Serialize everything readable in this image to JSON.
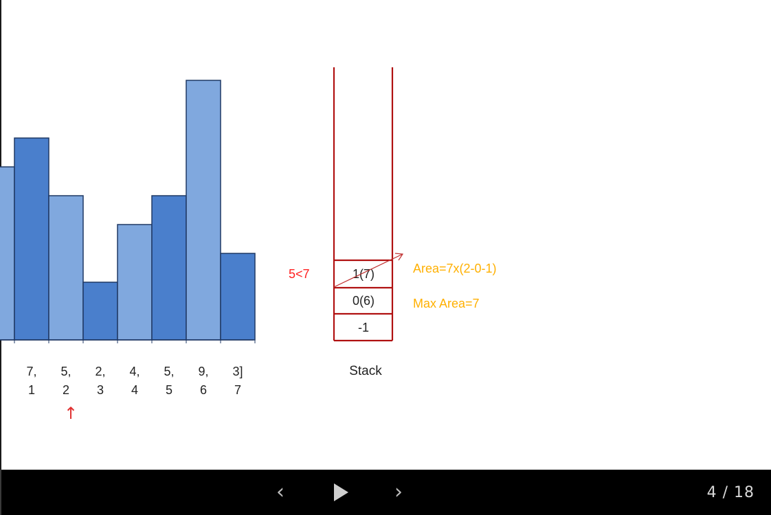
{
  "chart_data": {
    "type": "bar",
    "title": "",
    "xlabel": "",
    "ylabel": "",
    "values": [
      6,
      7,
      5,
      2,
      4,
      5,
      9,
      3
    ],
    "value_labels": [
      "",
      "7,",
      "5,",
      "2,",
      "4,",
      "5,",
      "9,",
      "3]"
    ],
    "index_labels": [
      "",
      "1",
      "2",
      "3",
      "4",
      "5",
      "6",
      "7"
    ],
    "grid": false,
    "colors": {
      "dark_bar": "#4a7fcc",
      "light_bar": "#80a8de",
      "bar_stroke": "#1f3864"
    }
  },
  "pointer": {
    "glyph": "↑",
    "color": "#e03030"
  },
  "stack": {
    "label": "Stack",
    "cells": [
      "1(7)",
      "0(6)",
      "-1"
    ],
    "outline_color": "#b01010"
  },
  "annotations": {
    "comparison": "5<7",
    "comparison_color": "#ff2020",
    "area": "Area=7x(2-0-1)",
    "max_area": "Max Area=7",
    "area_color": "#ffb000"
  },
  "player": {
    "page_counter": "4 / 18",
    "prev_icon": "‹",
    "next_icon": "›"
  }
}
